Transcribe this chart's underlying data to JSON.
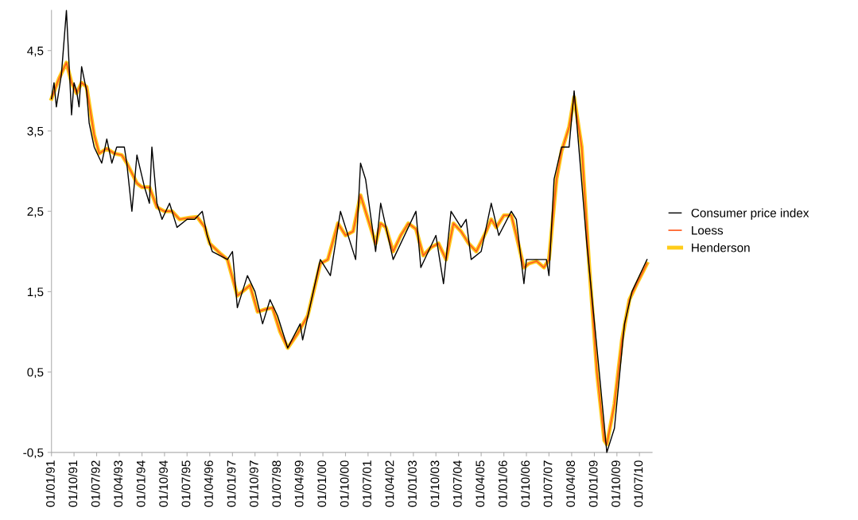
{
  "chart_data": {
    "type": "line",
    "legend": "right",
    "grid": false,
    "marker": "none",
    "ylim": [
      -0.5,
      5.0
    ],
    "yticks": [
      {
        "value": -0.5,
        "label": "-0,5"
      },
      {
        "value": 0.5,
        "label": "0,5"
      },
      {
        "value": 1.5,
        "label": "1,5"
      },
      {
        "value": 2.5,
        "label": "2,5"
      },
      {
        "value": 3.5,
        "label": "3,5"
      },
      {
        "value": 4.5,
        "label": "4,5"
      }
    ],
    "xlim": [
      "1991-01-01",
      "2010-12-01"
    ],
    "xticks": [
      {
        "value": "1991-01-01",
        "label": "01/01/91"
      },
      {
        "value": "1991-10-01",
        "label": "01/10/91"
      },
      {
        "value": "1992-07-01",
        "label": "01/07/92"
      },
      {
        "value": "1993-04-01",
        "label": "01/04/93"
      },
      {
        "value": "1994-01-01",
        "label": "01/01/94"
      },
      {
        "value": "1994-10-01",
        "label": "01/10/94"
      },
      {
        "value": "1995-07-01",
        "label": "01/07/95"
      },
      {
        "value": "1996-04-01",
        "label": "01/04/96"
      },
      {
        "value": "1997-01-01",
        "label": "01/01/97"
      },
      {
        "value": "1997-10-01",
        "label": "01/10/97"
      },
      {
        "value": "1998-07-01",
        "label": "01/07/98"
      },
      {
        "value": "1999-04-01",
        "label": "01/04/99"
      },
      {
        "value": "2000-01-01",
        "label": "01/01/00"
      },
      {
        "value": "2000-10-01",
        "label": "01/10/00"
      },
      {
        "value": "2001-07-01",
        "label": "01/07/01"
      },
      {
        "value": "2002-04-01",
        "label": "01/04/02"
      },
      {
        "value": "2003-01-01",
        "label": "01/01/03"
      },
      {
        "value": "2003-10-01",
        "label": "01/10/03"
      },
      {
        "value": "2004-07-01",
        "label": "01/07/04"
      },
      {
        "value": "2005-04-01",
        "label": "01/04/05"
      },
      {
        "value": "2006-01-01",
        "label": "01/01/06"
      },
      {
        "value": "2006-10-01",
        "label": "01/10/06"
      },
      {
        "value": "2007-07-01",
        "label": "01/07/07"
      },
      {
        "value": "2008-04-01",
        "label": "01/04/08"
      },
      {
        "value": "2009-01-01",
        "label": "01/01/09"
      },
      {
        "value": "2009-10-01",
        "label": "01/10/09"
      },
      {
        "value": "2010-07-01",
        "label": "01/07/10"
      }
    ],
    "series": [
      {
        "name": "Consumer price index",
        "color": "#000000",
        "x": [
          "1991-01",
          "1991-02",
          "1991-03",
          "1991-05",
          "1991-07",
          "1991-09",
          "1991-10",
          "1991-11",
          "1991-12",
          "1992-01",
          "1992-03",
          "1992-04",
          "1992-06",
          "1992-09",
          "1992-11",
          "1993-01",
          "1993-03",
          "1993-06",
          "1993-07",
          "1993-09",
          "1993-11",
          "1994-02",
          "1994-04",
          "1994-05",
          "1994-07",
          "1994-09",
          "1994-12",
          "1995-03",
          "1995-07",
          "1995-10",
          "1996-01",
          "1996-03",
          "1996-05",
          "1996-11",
          "1997-01",
          "1997-03",
          "1997-07",
          "1997-10",
          "1998-01",
          "1998-04",
          "1998-07",
          "1998-11",
          "1999-04",
          "1999-05",
          "1999-12",
          "2000-04",
          "2000-08",
          "2001-02",
          "2001-04",
          "2001-06",
          "2001-10",
          "2001-12",
          "2002-05",
          "2003-02",
          "2003-04",
          "2003-10",
          "2004-01",
          "2004-04",
          "2004-08",
          "2004-10",
          "2004-12",
          "2005-04",
          "2005-08",
          "2005-11",
          "2006-04",
          "2006-06",
          "2006-09",
          "2006-10",
          "2007-06",
          "2007-07",
          "2007-09",
          "2007-12",
          "2008-03",
          "2008-05",
          "2008-10",
          "2009-03",
          "2009-06",
          "2009-09",
          "2010-01",
          "2010-04",
          "2010-10"
        ],
        "values": [
          3.9,
          4.1,
          3.8,
          4.2,
          5.0,
          3.7,
          4.1,
          4.0,
          3.8,
          4.3,
          4.0,
          3.6,
          3.3,
          3.1,
          3.4,
          3.1,
          3.3,
          3.3,
          3.1,
          2.5,
          3.2,
          2.8,
          2.6,
          3.3,
          2.6,
          2.4,
          2.6,
          2.3,
          2.4,
          2.4,
          2.5,
          2.2,
          2.0,
          1.9,
          2.0,
          1.3,
          1.7,
          1.5,
          1.1,
          1.4,
          1.2,
          0.8,
          1.1,
          0.9,
          1.9,
          1.7,
          2.5,
          1.9,
          3.1,
          2.9,
          2.0,
          2.6,
          1.9,
          2.5,
          1.8,
          2.2,
          1.6,
          2.5,
          2.3,
          2.4,
          1.9,
          2.0,
          2.6,
          2.2,
          2.5,
          2.4,
          1.6,
          1.9,
          1.9,
          1.7,
          2.9,
          3.3,
          3.3,
          4.0,
          2.1,
          0.5,
          -0.5,
          -0.2,
          1.1,
          1.5,
          1.9
        ]
      },
      {
        "name": "Loess",
        "color": "#ff5a1e",
        "x": [
          "1991-01",
          "1991-04",
          "1991-07",
          "1991-09",
          "1991-11",
          "1992-01",
          "1992-03",
          "1992-06",
          "1992-08",
          "1992-11",
          "1993-02",
          "1993-05",
          "1993-07",
          "1993-11",
          "1994-01",
          "1994-04",
          "1994-07",
          "1994-10",
          "1995-01",
          "1995-04",
          "1995-08",
          "1995-11",
          "1996-02",
          "1996-04",
          "1996-08",
          "1996-11",
          "1997-03",
          "1997-05",
          "1997-08",
          "1997-11",
          "1998-02",
          "1998-05",
          "1998-08",
          "1998-11",
          "1999-03",
          "1999-07",
          "1999-12",
          "2000-03",
          "2000-07",
          "2000-10",
          "2001-01",
          "2001-04",
          "2001-07",
          "2001-10",
          "2001-12",
          "2002-02",
          "2002-05",
          "2002-08",
          "2002-11",
          "2003-02",
          "2003-05",
          "2003-08",
          "2003-11",
          "2004-02",
          "2004-05",
          "2004-08",
          "2004-11",
          "2005-02",
          "2005-06",
          "2005-08",
          "2005-10",
          "2006-01",
          "2006-04",
          "2006-06",
          "2006-09",
          "2006-11",
          "2007-02",
          "2007-05",
          "2007-07",
          "2007-10",
          "2007-12",
          "2008-03",
          "2008-05",
          "2008-08",
          "2008-11",
          "2009-02",
          "2009-05",
          "2009-06",
          "2009-09",
          "2009-12",
          "2010-03",
          "2010-06",
          "2010-10"
        ],
        "values": [
          3.9,
          4.15,
          4.35,
          4.1,
          3.97,
          4.1,
          4.05,
          3.45,
          3.22,
          3.28,
          3.22,
          3.2,
          3.1,
          2.85,
          2.8,
          2.8,
          2.55,
          2.5,
          2.5,
          2.4,
          2.42,
          2.43,
          2.3,
          2.1,
          1.98,
          1.9,
          1.45,
          1.5,
          1.58,
          1.25,
          1.28,
          1.3,
          1.0,
          0.8,
          0.98,
          1.2,
          1.85,
          1.9,
          2.35,
          2.2,
          2.25,
          2.7,
          2.4,
          2.1,
          2.35,
          2.3,
          2.0,
          2.2,
          2.35,
          2.28,
          1.95,
          2.05,
          2.1,
          1.9,
          2.35,
          2.25,
          2.1,
          2.0,
          2.25,
          2.4,
          2.3,
          2.45,
          2.45,
          2.2,
          1.8,
          1.85,
          1.88,
          1.8,
          1.9,
          2.9,
          3.25,
          3.55,
          3.92,
          3.3,
          1.8,
          0.5,
          -0.35,
          -0.4,
          0.1,
          0.9,
          1.4,
          1.6,
          1.85
        ]
      },
      {
        "name": "Henderson",
        "color": "#ffcc1a",
        "x": [
          "1991-01",
          "1991-04",
          "1991-07",
          "1991-09",
          "1991-11",
          "1992-01",
          "1992-03",
          "1992-06",
          "1992-08",
          "1992-11",
          "1993-02",
          "1993-05",
          "1993-07",
          "1993-11",
          "1994-01",
          "1994-04",
          "1994-07",
          "1994-10",
          "1995-01",
          "1995-04",
          "1995-08",
          "1995-11",
          "1996-02",
          "1996-04",
          "1996-08",
          "1996-11",
          "1997-03",
          "1997-05",
          "1997-08",
          "1997-11",
          "1998-02",
          "1998-05",
          "1998-08",
          "1998-11",
          "1999-03",
          "1999-07",
          "1999-12",
          "2000-03",
          "2000-07",
          "2000-10",
          "2001-01",
          "2001-04",
          "2001-07",
          "2001-10",
          "2001-12",
          "2002-02",
          "2002-05",
          "2002-08",
          "2002-11",
          "2003-02",
          "2003-05",
          "2003-08",
          "2003-11",
          "2004-02",
          "2004-05",
          "2004-08",
          "2004-11",
          "2005-02",
          "2005-06",
          "2005-08",
          "2005-10",
          "2006-01",
          "2006-04",
          "2006-06",
          "2006-09",
          "2006-11",
          "2007-02",
          "2007-05",
          "2007-07",
          "2007-10",
          "2007-12",
          "2008-03",
          "2008-05",
          "2008-08",
          "2008-11",
          "2009-02",
          "2009-05",
          "2009-06",
          "2009-09",
          "2009-12",
          "2010-03",
          "2010-06",
          "2010-10"
        ],
        "values": [
          3.9,
          4.15,
          4.35,
          4.1,
          3.97,
          4.1,
          4.05,
          3.45,
          3.22,
          3.28,
          3.22,
          3.2,
          3.1,
          2.85,
          2.8,
          2.8,
          2.55,
          2.5,
          2.5,
          2.4,
          2.42,
          2.43,
          2.3,
          2.1,
          1.98,
          1.9,
          1.45,
          1.5,
          1.58,
          1.25,
          1.28,
          1.3,
          1.0,
          0.8,
          0.98,
          1.2,
          1.85,
          1.9,
          2.35,
          2.2,
          2.25,
          2.7,
          2.4,
          2.1,
          2.35,
          2.3,
          2.0,
          2.2,
          2.35,
          2.28,
          1.95,
          2.05,
          2.1,
          1.9,
          2.35,
          2.25,
          2.1,
          2.0,
          2.25,
          2.4,
          2.3,
          2.45,
          2.45,
          2.2,
          1.8,
          1.85,
          1.88,
          1.8,
          1.9,
          2.9,
          3.25,
          3.55,
          3.92,
          3.3,
          1.8,
          0.5,
          -0.35,
          -0.4,
          0.1,
          0.9,
          1.4,
          1.6,
          1.85
        ]
      }
    ]
  }
}
